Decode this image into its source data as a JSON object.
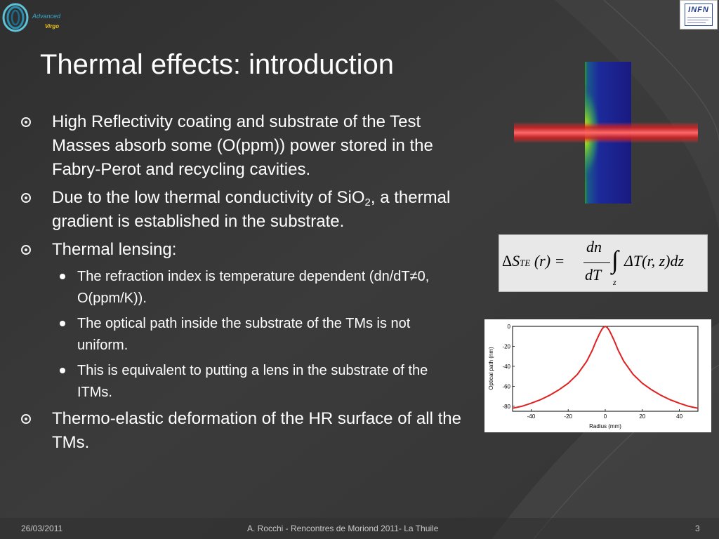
{
  "slide": {
    "title": "Thermal effects: introduction",
    "logo_left_text": [
      "Advanced",
      "Virgo"
    ],
    "logo_right_text": "INFN"
  },
  "bullets": [
    {
      "level": 1,
      "text": "High Reflectivity coating and substrate of the Test Masses absorb some (O(ppm)) power stored in the Fabry-Perot and recycling cavities."
    },
    {
      "level": 1,
      "text_before": "Due to the low thermal conductivity of SiO",
      "sub": "2",
      "text_after": ", a thermal gradient is established in the substrate."
    },
    {
      "level": 1,
      "text": "Thermal lensing:"
    },
    {
      "level": 2,
      "text": "The refraction index is temperature dependent (dn/dT≠0, O(ppm/K))."
    },
    {
      "level": 2,
      "text": "The optical path inside the substrate of the TMs is not uniform."
    },
    {
      "level": 2,
      "text": "This is equivalent to putting a lens in the substrate of the ITMs."
    },
    {
      "level": 1,
      "text": "Thermo-elastic deformation of the HR surface of all the TMs."
    }
  ],
  "formula": {
    "lhs_delta": "Δ",
    "lhs_S": "S",
    "lhs_sub": "TE",
    "lhs_arg": "(r) =",
    "num": "dn",
    "den": "dT",
    "integral": "∫",
    "int_sub": "z",
    "rhs": "ΔT(r, z)dz"
  },
  "chart_data": {
    "type": "line",
    "title": "",
    "xlabel": "Radius (mm)",
    "ylabel": "Optical path (nm)",
    "xlim": [
      -50,
      50
    ],
    "ylim": [
      -85,
      0
    ],
    "xticks": [
      -40,
      -20,
      0,
      20,
      40
    ],
    "yticks": [
      0,
      -20,
      -40,
      -60,
      -80
    ],
    "grid": false,
    "legend": "none",
    "color": "#e02020",
    "x": [
      -50,
      -45,
      -40,
      -35,
      -30,
      -25,
      -20,
      -15,
      -10,
      -7,
      -5,
      -3,
      -2,
      -1,
      0,
      1,
      2,
      3,
      5,
      7,
      10,
      15,
      20,
      25,
      30,
      35,
      40,
      45,
      50
    ],
    "y": [
      -82,
      -80,
      -77,
      -73.5,
      -69,
      -63.5,
      -57,
      -48,
      -35,
      -24,
      -15,
      -7,
      -3.5,
      -1,
      0,
      -1,
      -3.5,
      -7,
      -15,
      -24,
      -35,
      -48,
      -57,
      -63.5,
      -69,
      -73.5,
      -77,
      -80,
      -82
    ]
  },
  "footer": {
    "date": "26/03/2011",
    "center": "A. Rocchi - Rencontres de Moriond 2011- La Thuile",
    "page": "3"
  }
}
